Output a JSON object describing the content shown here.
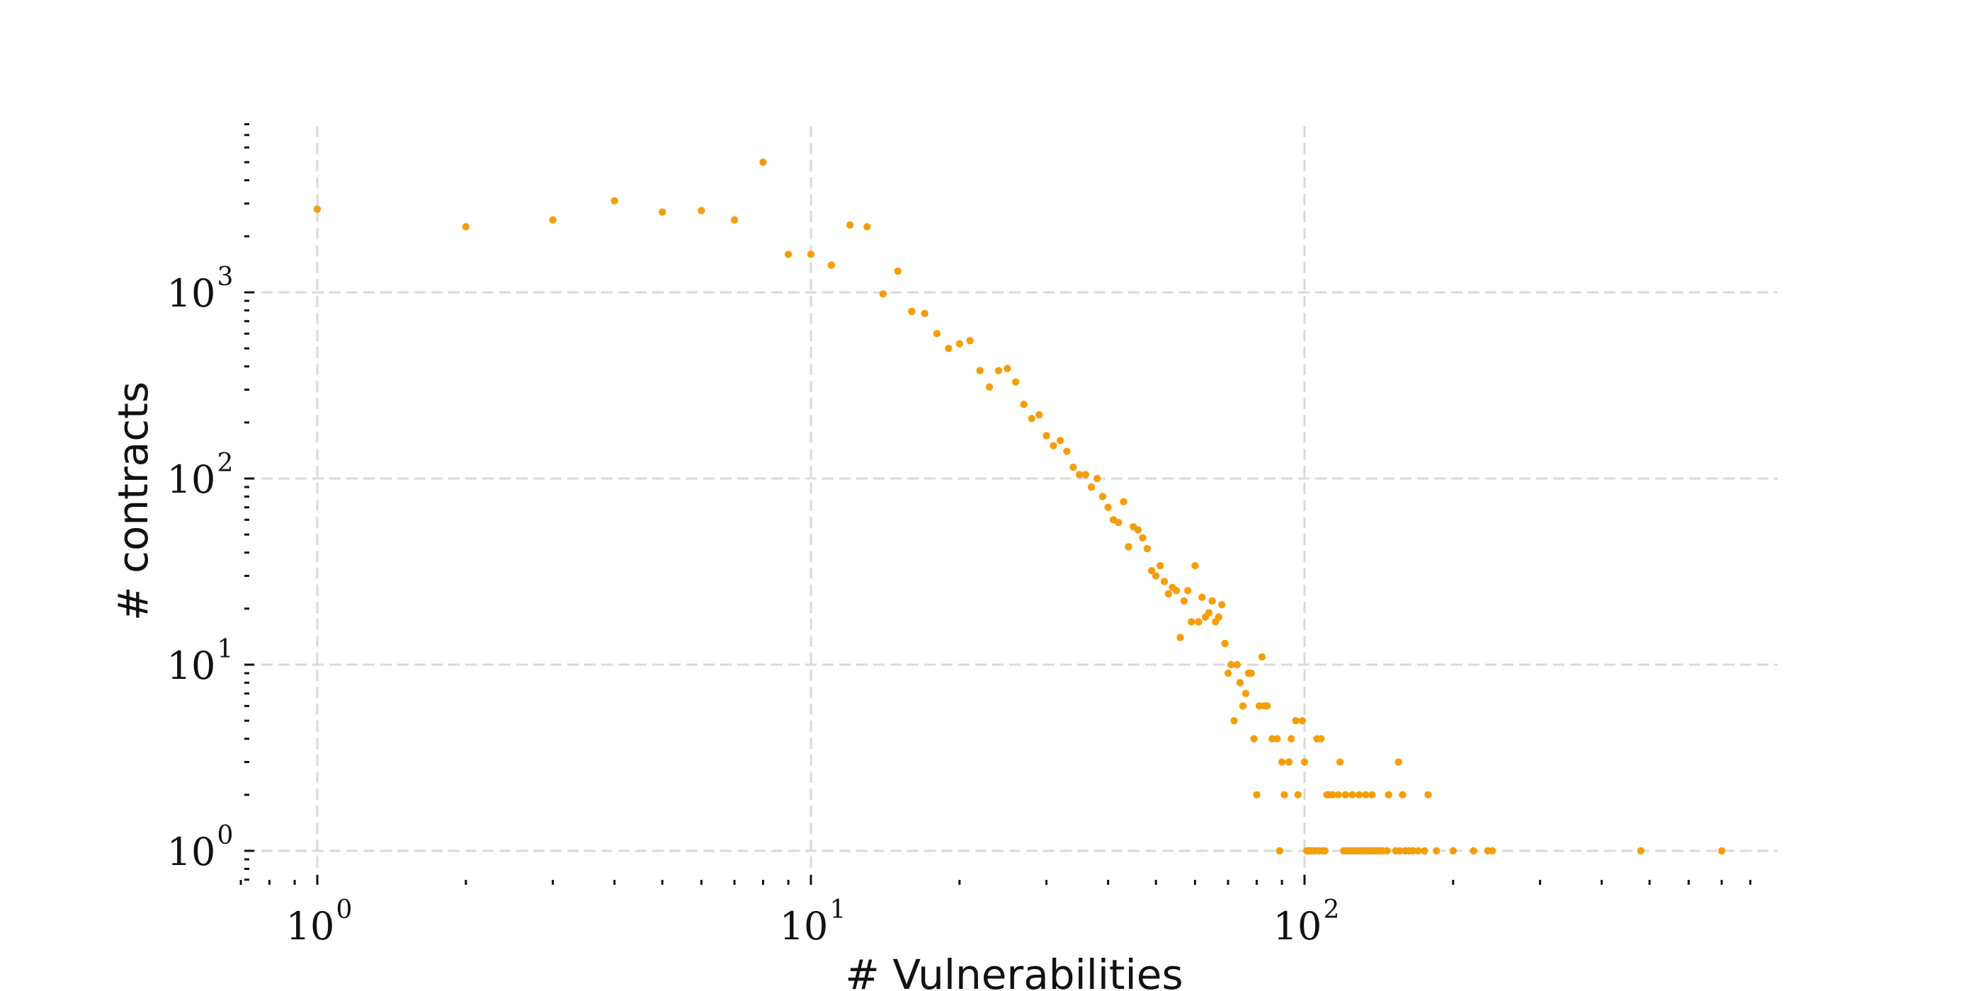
{
  "chart_data": {
    "type": "scatter",
    "title": "",
    "xlabel": "# Vulnerabilities",
    "ylabel": "# contracts",
    "x_scale": "log",
    "y_scale": "log",
    "xlim": [
      0.7,
      860
    ],
    "ylim": [
      0.7,
      8000
    ],
    "x_ticks": [
      {
        "value": 1,
        "label": "10",
        "exp": "0"
      },
      {
        "value": 10,
        "label": "10",
        "exp": "1"
      },
      {
        "value": 100,
        "label": "10",
        "exp": "2"
      }
    ],
    "y_ticks": [
      {
        "value": 1,
        "label": "10",
        "exp": "0"
      },
      {
        "value": 10,
        "label": "10",
        "exp": "1"
      },
      {
        "value": 100,
        "label": "10",
        "exp": "2"
      },
      {
        "value": 1000,
        "label": "10",
        "exp": "3"
      }
    ],
    "grid": true,
    "marker_color": "#f59e0b",
    "series": [
      {
        "points": [
          [
            1,
            2800
          ],
          [
            2,
            2250
          ],
          [
            3,
            2450
          ],
          [
            4,
            3100
          ],
          [
            5,
            2700
          ],
          [
            6,
            2750
          ],
          [
            7,
            2450
          ],
          [
            8,
            5000
          ],
          [
            9,
            1600
          ],
          [
            10,
            1600
          ],
          [
            11,
            1400
          ],
          [
            12,
            2300
          ],
          [
            13,
            2250
          ],
          [
            14,
            980
          ],
          [
            15,
            1300
          ],
          [
            16,
            790
          ],
          [
            17,
            770
          ],
          [
            18,
            600
          ],
          [
            19,
            500
          ],
          [
            20,
            530
          ],
          [
            21,
            550
          ],
          [
            22,
            380
          ],
          [
            23,
            310
          ],
          [
            24,
            380
          ],
          [
            25,
            390
          ],
          [
            26,
            330
          ],
          [
            27,
            250
          ],
          [
            28,
            210
          ],
          [
            29,
            220
          ],
          [
            30,
            170
          ],
          [
            31,
            150
          ],
          [
            32,
            160
          ],
          [
            33,
            140
          ],
          [
            34,
            115
          ],
          [
            35,
            105
          ],
          [
            36,
            105
          ],
          [
            37,
            90
          ],
          [
            38,
            100
          ],
          [
            39,
            80
          ],
          [
            40,
            70
          ],
          [
            41,
            60
          ],
          [
            42,
            58
          ],
          [
            43,
            75
          ],
          [
            44,
            43
          ],
          [
            45,
            55
          ],
          [
            46,
            53
          ],
          [
            47,
            48
          ],
          [
            48,
            42
          ],
          [
            49,
            32
          ],
          [
            50,
            30
          ],
          [
            51,
            34
          ],
          [
            52,
            28
          ],
          [
            53,
            24
          ],
          [
            54,
            26
          ],
          [
            55,
            25
          ],
          [
            56,
            14
          ],
          [
            57,
            22
          ],
          [
            58,
            25
          ],
          [
            59,
            17
          ],
          [
            60,
            34
          ],
          [
            61,
            17
          ],
          [
            62,
            23
          ],
          [
            63,
            18
          ],
          [
            64,
            19
          ],
          [
            65,
            22
          ],
          [
            66,
            17
          ],
          [
            67,
            18
          ],
          [
            68,
            21
          ],
          [
            69,
            13
          ],
          [
            70,
            9
          ],
          [
            71,
            10
          ],
          [
            72,
            5
          ],
          [
            73,
            10
          ],
          [
            74,
            8
          ],
          [
            75,
            6
          ],
          [
            76,
            7
          ],
          [
            77,
            9
          ],
          [
            78,
            9
          ],
          [
            79,
            4
          ],
          [
            80,
            2
          ],
          [
            81,
            6
          ],
          [
            82,
            11
          ],
          [
            83,
            6
          ],
          [
            84,
            6
          ],
          [
            86,
            4
          ],
          [
            88,
            4
          ],
          [
            89,
            1
          ],
          [
            90,
            3
          ],
          [
            91,
            2
          ],
          [
            93,
            3
          ],
          [
            94,
            4
          ],
          [
            96,
            5
          ],
          [
            97,
            2
          ],
          [
            99,
            5
          ],
          [
            100,
            3
          ],
          [
            101,
            1
          ],
          [
            102,
            1
          ],
          [
            103,
            1
          ],
          [
            104,
            1
          ],
          [
            105,
            1
          ],
          [
            106,
            4
          ],
          [
            107,
            1
          ],
          [
            108,
            4
          ],
          [
            109,
            1
          ],
          [
            110,
            1
          ],
          [
            111,
            2
          ],
          [
            112,
            2
          ],
          [
            114,
            2
          ],
          [
            117,
            2
          ],
          [
            118,
            3
          ],
          [
            120,
            1
          ],
          [
            121,
            2
          ],
          [
            122,
            1
          ],
          [
            124,
            1
          ],
          [
            125,
            2
          ],
          [
            126,
            1
          ],
          [
            128,
            1
          ],
          [
            129,
            2
          ],
          [
            130,
            1
          ],
          [
            132,
            1
          ],
          [
            133,
            2
          ],
          [
            134,
            1
          ],
          [
            136,
            1
          ],
          [
            137,
            2
          ],
          [
            138,
            1
          ],
          [
            140,
            1
          ],
          [
            142,
            1
          ],
          [
            144,
            1
          ],
          [
            147,
            1
          ],
          [
            148,
            2
          ],
          [
            153,
            1
          ],
          [
            155,
            3
          ],
          [
            156,
            1
          ],
          [
            158,
            2
          ],
          [
            160,
            1
          ],
          [
            163,
            1
          ],
          [
            166,
            1
          ],
          [
            170,
            1
          ],
          [
            175,
            1
          ],
          [
            178,
            2
          ],
          [
            185,
            1
          ],
          [
            200,
            1
          ],
          [
            220,
            1
          ],
          [
            235,
            1
          ],
          [
            240,
            1
          ],
          [
            480,
            1
          ],
          [
            700,
            1
          ]
        ]
      }
    ]
  }
}
